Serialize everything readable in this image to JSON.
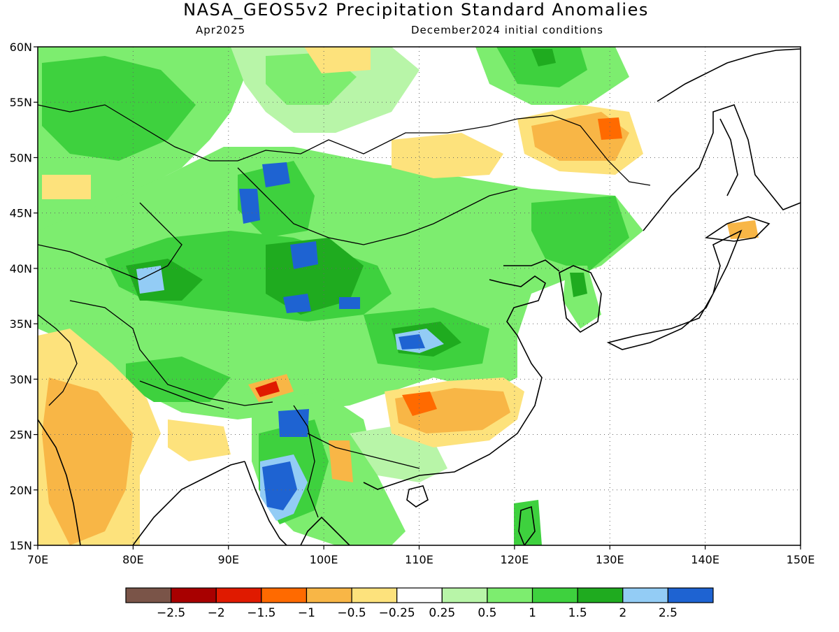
{
  "title": "NASA_GEOS5v2 Precipitation Standard Anomalies",
  "subtitle_left": "Apr2025",
  "subtitle_right": "December2024 initial conditions",
  "map": {
    "lon_range": [
      70,
      150
    ],
    "lat_range": [
      15,
      60
    ],
    "lon_ticks": [
      "70E",
      "80E",
      "90E",
      "100E",
      "110E",
      "120E",
      "130E",
      "140E",
      "150E"
    ],
    "lat_ticks": [
      "15N",
      "20N",
      "25N",
      "30N",
      "35N",
      "40N",
      "45N",
      "50N",
      "55N",
      "60N"
    ],
    "grid": "dotted",
    "region": "East and South Asia"
  },
  "colorbar": {
    "colors": [
      "#7a5448",
      "#a80000",
      "#e01a00",
      "#ff6a00",
      "#f8b646",
      "#fde27c",
      "#ffffff",
      "#b8f5a8",
      "#7ded6f",
      "#3ed13e",
      "#1fab1f",
      "#93ccf5",
      "#1e63d2"
    ],
    "labels": [
      "-2.5",
      "-2",
      "-1.5",
      "-1",
      "-0.5",
      "-0.25",
      "0.25",
      "0.5",
      "1",
      "1.5",
      "2",
      "2.5"
    ]
  },
  "anomaly_regions": [
    {
      "lon": 110,
      "lat": 27,
      "value": -1.5
    },
    {
      "lon": 130,
      "lat": 52,
      "value": -1.5
    },
    {
      "lon": 93,
      "lat": 30,
      "value": -1
    },
    {
      "lon": 77,
      "lat": 27,
      "value": -0.5
    },
    {
      "lon": 96,
      "lat": 21,
      "value": 2.5
    },
    {
      "lon": 97,
      "lat": 26,
      "value": 2.5
    },
    {
      "lon": 92,
      "lat": 47,
      "value": 2.5
    },
    {
      "lon": 110,
      "lat": 33,
      "value": 2.5
    },
    {
      "lon": 98,
      "lat": 41,
      "value": 2.5
    },
    {
      "lon": 122,
      "lat": 58,
      "value": 2
    }
  ]
}
